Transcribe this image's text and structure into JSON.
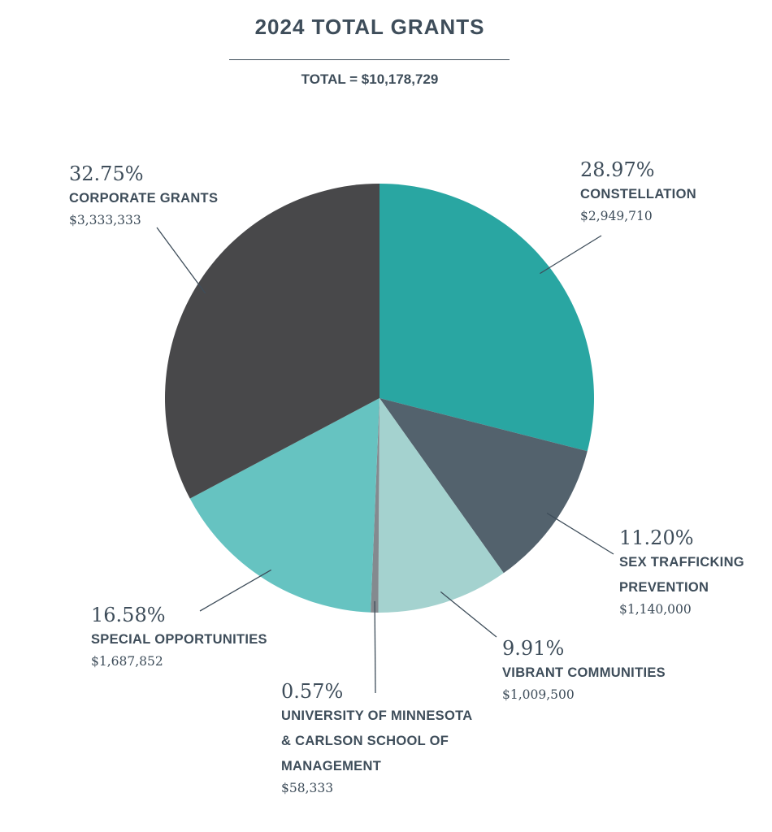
{
  "header": {
    "title": "2024 TOTAL GRANTS",
    "total": "TOTAL = $10,178,729"
  },
  "chart_data": {
    "type": "pie",
    "title": "2024 TOTAL GRANTS",
    "subtitle": "TOTAL = $10,178,729",
    "slices": [
      {
        "label_lines": [
          "CONSTELLATION"
        ],
        "percent": 28.97,
        "percent_text": "28.97%",
        "amount": 2949710,
        "amount_text": "$2,949,710",
        "color": "#29a6a2"
      },
      {
        "label_lines": [
          "SEX TRAFFICKING",
          "PREVENTION"
        ],
        "percent": 11.2,
        "percent_text": "11.20%",
        "amount": 1140000,
        "amount_text": "$1,140,000",
        "color": "#53626d"
      },
      {
        "label_lines": [
          "VIBRANT COMMUNITIES"
        ],
        "percent": 9.91,
        "percent_text": "9.91%",
        "amount": 1009500,
        "amount_text": "$1,009,500",
        "color": "#a4d2cf"
      },
      {
        "label_lines": [
          "UNIVERSITY OF MINNESOTA",
          "& CARLSON SCHOOL OF",
          "MANAGEMENT"
        ],
        "percent": 0.57,
        "percent_text": "0.57%",
        "amount": 58333,
        "amount_text": "$58,333",
        "color": "#848a8f"
      },
      {
        "label_lines": [
          "SPECIAL OPPORTUNITIES"
        ],
        "percent": 16.58,
        "percent_text": "16.58%",
        "amount": 1687852,
        "amount_text": "$1,687,852",
        "color": "#66c3c1"
      },
      {
        "label_lines": [
          "CORPORATE GRANTS"
        ],
        "percent": 32.75,
        "percent_text": "32.75%",
        "amount": 3333333,
        "amount_text": "$3,333,333",
        "color": "#48484a"
      }
    ]
  }
}
